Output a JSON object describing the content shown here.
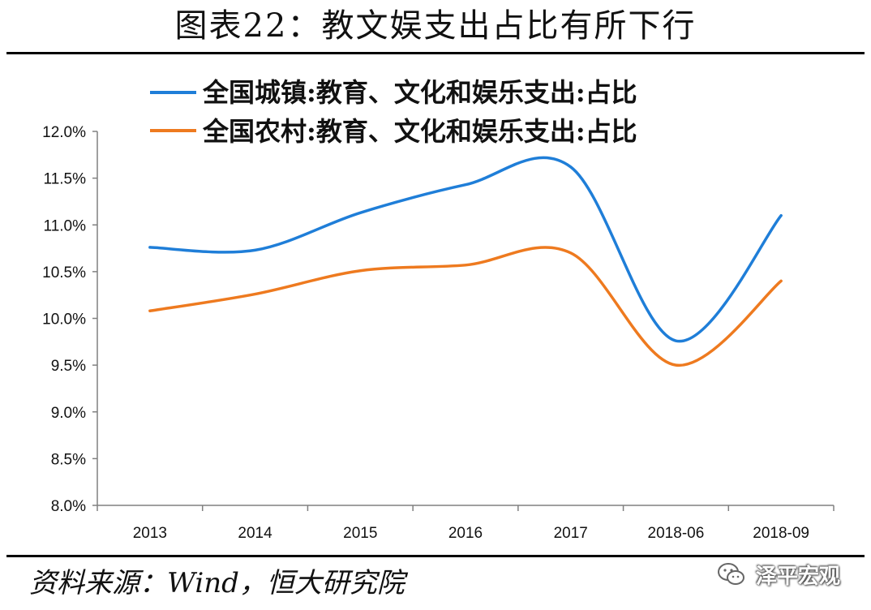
{
  "title": "图表22：教文娱支出占比有所下行",
  "source": "资料来源：Wind，恒大研究院",
  "brand": {
    "text": "泽平宏观",
    "icon": "wechat-icon"
  },
  "chart_data": {
    "type": "line",
    "title": "图表22：教文娱支出占比有所下行",
    "xlabel": "",
    "ylabel": "",
    "categories": [
      "2013",
      "2014",
      "2015",
      "2016",
      "2017",
      "2018-06",
      "2018-09"
    ],
    "ylim": [
      8.0,
      12.0
    ],
    "yticks": [
      "8.0%",
      "8.5%",
      "9.0%",
      "9.5%",
      "10.0%",
      "10.5%",
      "11.0%",
      "11.5%",
      "12.0%"
    ],
    "yticks_values": [
      8.0,
      8.5,
      9.0,
      9.5,
      10.0,
      10.5,
      11.0,
      11.5,
      12.0
    ],
    "grid": false,
    "legend_position": "top",
    "series": [
      {
        "name": "全国城镇:教育、文化和娱乐支出:占比",
        "color": "#1f7ed8",
        "values": [
          10.76,
          10.73,
          11.13,
          11.43,
          11.62,
          9.76,
          11.1
        ]
      },
      {
        "name": "全国农村:教育、文化和娱乐支出:占比",
        "color": "#ee7a1f",
        "values": [
          10.08,
          10.26,
          10.51,
          10.57,
          10.7,
          9.5,
          10.4
        ]
      }
    ]
  }
}
